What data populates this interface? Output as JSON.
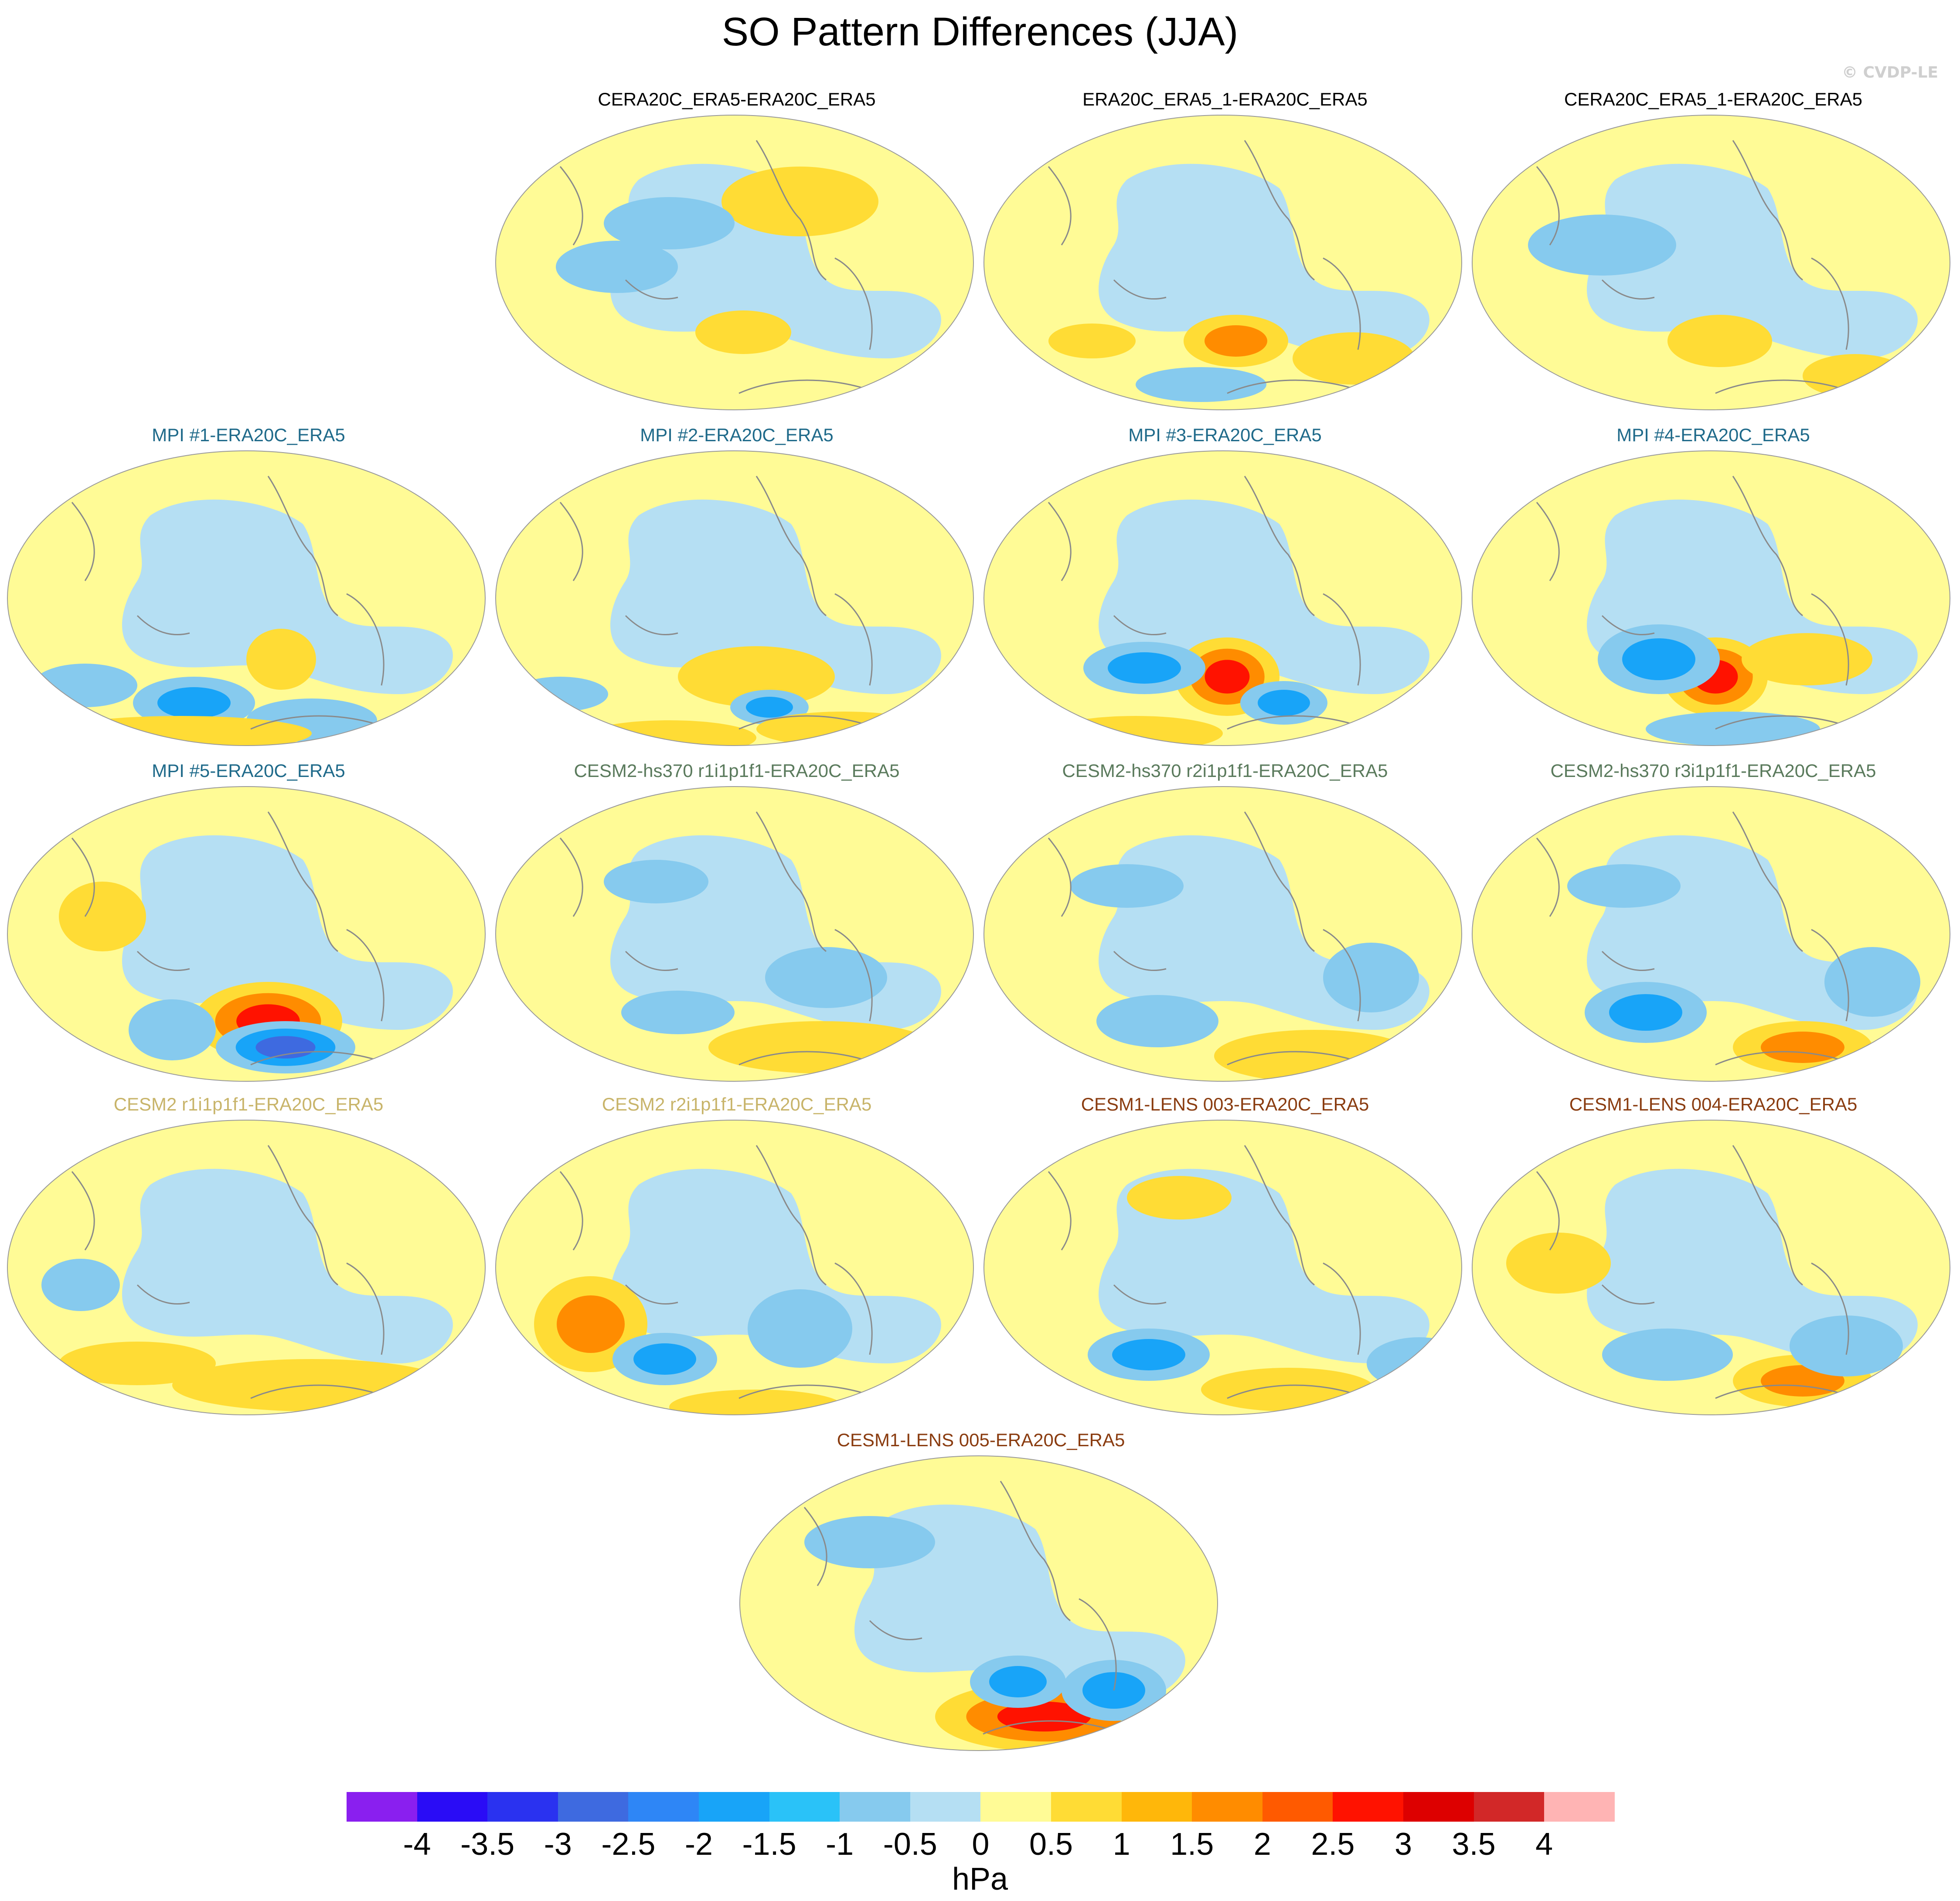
{
  "title": "SO Pattern Differences (JJA)",
  "copyright": "© CVDP-LE",
  "colors": {
    "obs_title": "#000000",
    "mpi_title": "#1f6a8a",
    "cesm2hs_title": "#5a7a5c",
    "cesm2_title": "#c8b46a",
    "lens_title": "#8a3c10",
    "ocean_near_zero_neg": "#b5dff3",
    "land_near_zero_pos": "#fffb96",
    "coast": "#8a8a8a"
  },
  "panels": [
    {
      "title": "CERA20C_ERA5-ERA20C_ERA5",
      "group": "obs"
    },
    {
      "title": "ERA20C_ERA5_1-ERA20C_ERA5",
      "group": "obs"
    },
    {
      "title": "CERA20C_ERA5_1-ERA20C_ERA5",
      "group": "obs"
    },
    {
      "title": "MPI #1-ERA20C_ERA5",
      "group": "mpi"
    },
    {
      "title": "MPI #2-ERA20C_ERA5",
      "group": "mpi"
    },
    {
      "title": "MPI #3-ERA20C_ERA5",
      "group": "mpi"
    },
    {
      "title": "MPI #4-ERA20C_ERA5",
      "group": "mpi"
    },
    {
      "title": "MPI #5-ERA20C_ERA5",
      "group": "mpi"
    },
    {
      "title": "CESM2-hs370 r1i1p1f1-ERA20C_ERA5",
      "group": "cesm2hs"
    },
    {
      "title": "CESM2-hs370 r2i1p1f1-ERA20C_ERA5",
      "group": "cesm2hs"
    },
    {
      "title": "CESM2-hs370 r3i1p1f1-ERA20C_ERA5",
      "group": "cesm2hs"
    },
    {
      "title": "CESM2 r1i1p1f1-ERA20C_ERA5",
      "group": "cesm2"
    },
    {
      "title": "CESM2 r2i1p1f1-ERA20C_ERA5",
      "group": "cesm2"
    },
    {
      "title": "CESM1-LENS 003-ERA20C_ERA5",
      "group": "lens"
    },
    {
      "title": "CESM1-LENS 004-ERA20C_ERA5",
      "group": "lens"
    },
    {
      "title": "CESM1-LENS 005-ERA20C_ERA5",
      "group": "lens"
    }
  ],
  "colorbar": {
    "units": "hPa",
    "labels": [
      "-4",
      "-3.5",
      "-3",
      "-2.5",
      "-2",
      "-1.5",
      "-1",
      "-0.5",
      "0",
      "0.5",
      "1",
      "1.5",
      "2",
      "2.5",
      "3",
      "3.5",
      "4"
    ],
    "colors": [
      "#8a1fef",
      "#2a0cf6",
      "#2a32f0",
      "#3e6ae0",
      "#2e86f6",
      "#18a4f8",
      "#2ac2f8",
      "#86caee",
      "#b5dff3",
      "#fffb96",
      "#ffdc35",
      "#ffb70a",
      "#ff8c00",
      "#ff5a00",
      "#ff1200",
      "#dd0000",
      "#d22828",
      "#ffb4b4"
    ]
  }
}
